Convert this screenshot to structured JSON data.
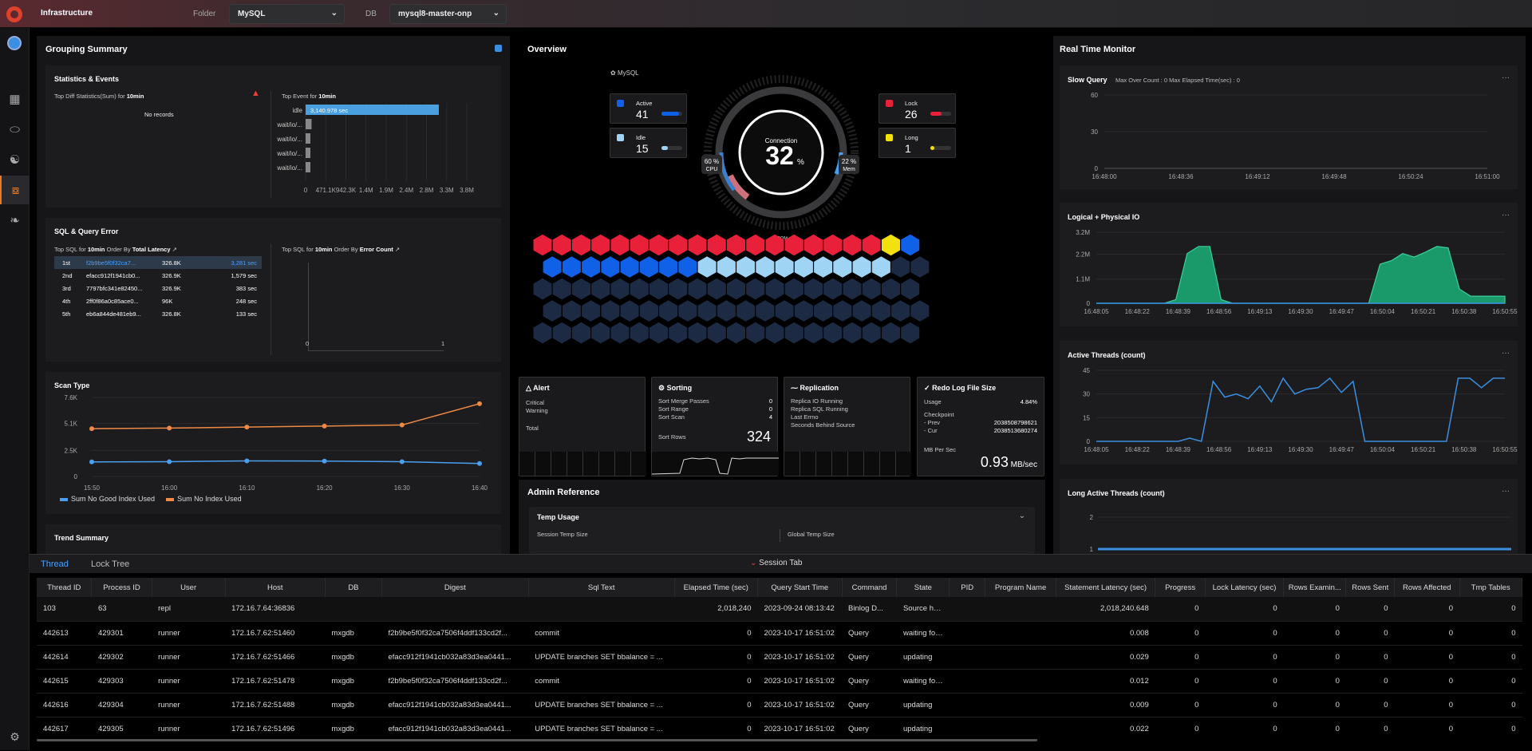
{
  "topbar": {
    "title": "Infrastructure",
    "folder_label": "Folder",
    "folder_value": "MySQL",
    "db_label": "DB",
    "db_value": "mysql8-master-onp"
  },
  "grouping": {
    "title": "Grouping Summary",
    "stats": {
      "title": "Statistics & Events",
      "top_diff_prefix": "Top Diff Statistics(Sum) for ",
      "top_diff_period": "10min",
      "no_records": "No records",
      "top_event_prefix": "Top Event for ",
      "top_event_period": "10min",
      "events": [
        {
          "label": "idle",
          "value": 3140.978,
          "text": "3,140.978 sec"
        },
        {
          "label": "wait/io/...",
          "value": 140
        },
        {
          "label": "wait/io/...",
          "value": 70
        },
        {
          "label": "wait/io/...",
          "value": 50
        },
        {
          "label": "wait/io/...",
          "value": 40
        }
      ],
      "ticks": [
        "0",
        "471.1K",
        "942.3K",
        "1.4M",
        "1.9M",
        "2.4M",
        "2.8M",
        "3.3M",
        "3.8M"
      ]
    },
    "sql": {
      "title": "SQL & Query Error",
      "top_sql_prefix": "Top SQL for ",
      "period": "10min",
      "order_mid": " Order By ",
      "order_latency": "Total Latency",
      "order_error": "Error Count",
      "rows": [
        {
          "rank": "1st",
          "digest": "f2b9be5f0f32ca7...",
          "count": "326.8K",
          "latency": "3,281 sec"
        },
        {
          "rank": "2nd",
          "digest": "efacc912f1941cb0...",
          "count": "326.9K",
          "latency": "1,579 sec"
        },
        {
          "rank": "3rd",
          "digest": "7797bfc341e82450...",
          "count": "326.9K",
          "latency": "383 sec"
        },
        {
          "rank": "4th",
          "digest": "2ff0f86a0c85ace0...",
          "count": "96K",
          "latency": "248 sec"
        },
        {
          "rank": "5th",
          "digest": "eb6a844de481eb9...",
          "count": "326.8K",
          "latency": "133 sec"
        }
      ],
      "error_ticks": [
        "0",
        "1"
      ]
    },
    "scan": {
      "title": "Scan Type",
      "legend": [
        "Sum No Good Index Used",
        "Sum No Index Used"
      ],
      "yticks": [
        "7.6K",
        "5.1K",
        "2.5K",
        "0"
      ],
      "xticks": [
        "15:50",
        "16:00",
        "16:10",
        "16:20",
        "16:30",
        "16:40"
      ]
    },
    "trend_title": "Trend Summary"
  },
  "overview": {
    "title": "Overview",
    "engine": "MySQL",
    "active": {
      "label": "Active",
      "value": "41"
    },
    "idle": {
      "label": "Idle",
      "value": "15"
    },
    "lock": {
      "label": "Lock",
      "value": "26"
    },
    "long": {
      "label": "Long",
      "value": "1"
    },
    "connection": {
      "label": "Connection",
      "value": "32",
      "unit": "%"
    },
    "cpu": {
      "value": "60 %",
      "label": "CPU"
    },
    "mem": {
      "value": "22 %",
      "label": "Mem"
    },
    "max": "100%",
    "hex_colors": {
      "red": "#e8203a",
      "blue": "#1060e8",
      "light": "#9fd4f5",
      "yellow": "#f2e10c",
      "dark": "#1c2a44"
    },
    "alert": {
      "title": "Alert",
      "critical": "Critical",
      "warning": "Warning",
      "total": "Total"
    },
    "sorting": {
      "title": "Sorting",
      "rows": [
        [
          "Sort Merge Passes",
          "0"
        ],
        [
          "Sort Range",
          "0"
        ],
        [
          "Sort Scan",
          "4"
        ]
      ],
      "sort_rows_label": "Sort Rows",
      "sort_rows_value": "324"
    },
    "replication": {
      "title": "Replication",
      "items": [
        "Replica IO Running",
        "Replica SQL Running",
        "Last Errno",
        "Seconds Behind Source"
      ]
    },
    "redo": {
      "title": "Redo Log File Size",
      "usage_label": "Usage",
      "usage_value": "4.84%",
      "checkpoint": "Checkpoint",
      "prev_label": "- Prev",
      "prev_value": "2038508798621",
      "cur_label": "- Cur",
      "cur_value": "2038513680274",
      "mb_label": "MB Per Sec",
      "mb_value": "0.93",
      "mb_unit": "MB/sec"
    },
    "admin": {
      "title": "Admin Reference",
      "temp_title": "Temp Usage",
      "session_temp": "Session Temp Size",
      "global_temp": "Global Temp Size"
    }
  },
  "realtime": {
    "title": "Real Time Monitor",
    "slow": {
      "title": "Slow Query",
      "sub": "Max Over Count : 0   Max Elapsed Time(sec) : 0",
      "yticks": [
        "60",
        "30",
        "0"
      ],
      "xticks": [
        "16:48:00",
        "16:48:36",
        "16:49:12",
        "16:49:48",
        "16:50:24",
        "16:51:00"
      ]
    },
    "io": {
      "title": "Logical + Physical IO",
      "yticks": [
        "3.2M",
        "2.2M",
        "1.1M",
        "0"
      ]
    },
    "threads": {
      "title": "Active Threads (count)",
      "yticks": [
        "45",
        "30",
        "15",
        "0"
      ]
    },
    "long": {
      "title": "Long Active Threads (count)",
      "yticks": [
        "2",
        "1"
      ]
    },
    "xticks": [
      "16:48:05",
      "16:48:22",
      "16:48:39",
      "16:48:56",
      "16:49:13",
      "16:49:30",
      "16:49:47",
      "16:50:04",
      "16:50:21",
      "16:50:38",
      "16:50:55"
    ],
    "more": "···"
  },
  "bottom": {
    "tabs": [
      "Thread",
      "Lock Tree"
    ],
    "session_tab": "Session Tab",
    "columns": [
      "Thread ID",
      "Process ID",
      "User",
      "Host",
      "DB",
      "Digest",
      "Sql Text",
      "Elapsed Time (sec)",
      "Query Start Time",
      "Command",
      "State",
      "PID",
      "Program Name",
      "Statement Latency (sec)",
      "Progress",
      "Lock Latency (sec)",
      "Rows Examin...",
      "Rows Sent",
      "Rows Affected",
      "Tmp Tables"
    ],
    "rows": [
      [
        "103",
        "63",
        "repl",
        "172.16.7.64:36836",
        "",
        "",
        "",
        "2,018,240",
        "2023-09-24 08:13:42",
        "Binlog D...",
        "Source has...",
        "",
        "",
        "2,018,240.648",
        "0",
        "0",
        "0",
        "0",
        "0",
        "0"
      ],
      [
        "442613",
        "429301",
        "runner",
        "172.16.7.62:51460",
        "mxgdb",
        "f2b9be5f0f32ca7506f4ddf133cd2f...",
        "commit",
        "0",
        "2023-10-17 16:51:02",
        "Query",
        "waiting for ...",
        "",
        "",
        "0.008",
        "0",
        "0",
        "0",
        "0",
        "0",
        "0"
      ],
      [
        "442614",
        "429302",
        "runner",
        "172.16.7.62:51466",
        "mxgdb",
        "efacc912f1941cb032a83d3ea0441...",
        "UPDATE branches SET bbalance = ...",
        "0",
        "2023-10-17 16:51:02",
        "Query",
        "updating",
        "",
        "",
        "0.029",
        "0",
        "0",
        "0",
        "0",
        "0",
        "0"
      ],
      [
        "442615",
        "429303",
        "runner",
        "172.16.7.62:51478",
        "mxgdb",
        "f2b9be5f0f32ca7506f4ddf133cd2f...",
        "commit",
        "0",
        "2023-10-17 16:51:02",
        "Query",
        "waiting for ...",
        "",
        "",
        "0.012",
        "0",
        "0",
        "0",
        "0",
        "0",
        "0"
      ],
      [
        "442616",
        "429304",
        "runner",
        "172.16.7.62:51488",
        "mxgdb",
        "efacc912f1941cb032a83d3ea0441...",
        "UPDATE branches SET bbalance = ...",
        "0",
        "2023-10-17 16:51:02",
        "Query",
        "updating",
        "",
        "",
        "0.009",
        "0",
        "0",
        "0",
        "0",
        "0",
        "0"
      ],
      [
        "442617",
        "429305",
        "runner",
        "172.16.7.62:51496",
        "mxgdb",
        "efacc912f1941cb032a83d3ea0441...",
        "UPDATE branches SET bbalance = ...",
        "0",
        "2023-10-17 16:51:02",
        "Query",
        "updating",
        "",
        "",
        "0.022",
        "0",
        "0",
        "0",
        "0",
        "0",
        "0"
      ]
    ]
  }
}
